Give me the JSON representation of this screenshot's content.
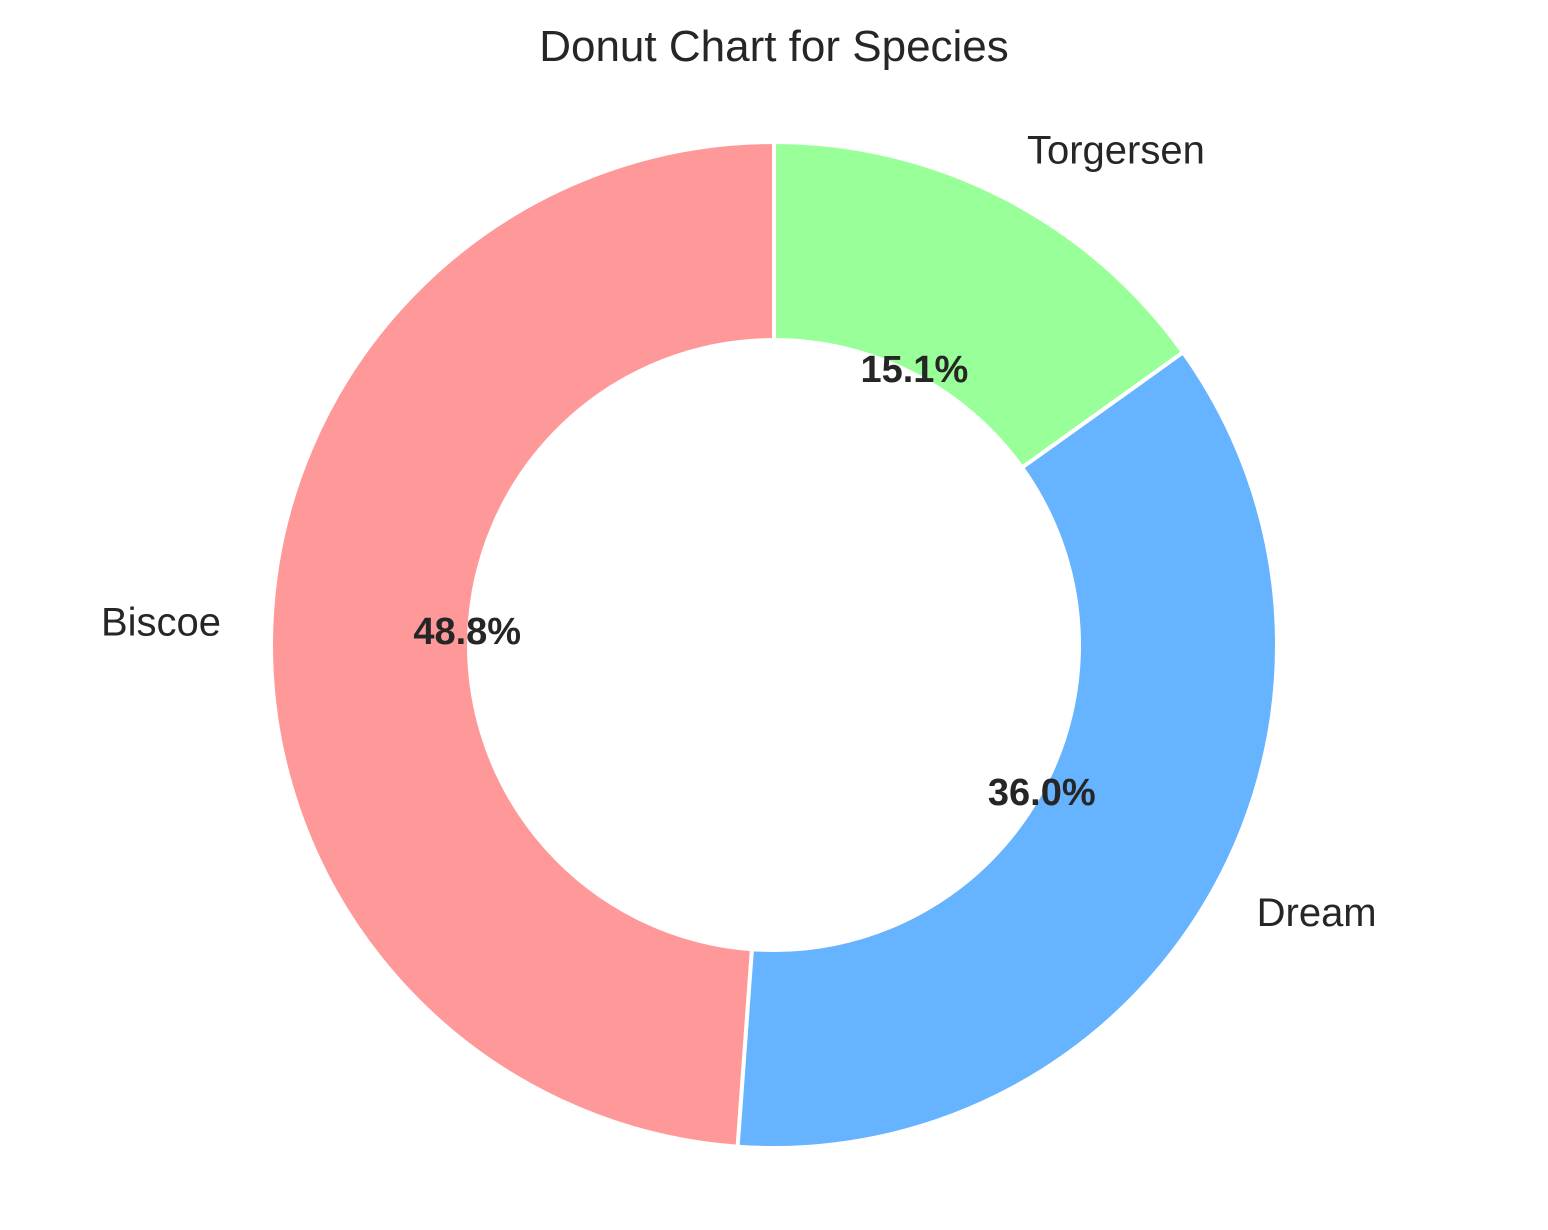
{
  "chart_data": {
    "type": "pie",
    "style": "donut",
    "title": "Donut Chart for Species",
    "start_angle_deg": 90,
    "direction": "counterclockwise",
    "slices": [
      {
        "label": "Biscoe",
        "value": 48.8,
        "pct_label": "48.8%",
        "color": "#ff9999"
      },
      {
        "label": "Dream",
        "value": 36.0,
        "pct_label": "36.0%",
        "color": "#66b3ff"
      },
      {
        "label": "Torgersen",
        "value": 15.1,
        "pct_label": "15.1%",
        "color": "#99ff99"
      }
    ],
    "legend": "none",
    "grid": false
  }
}
